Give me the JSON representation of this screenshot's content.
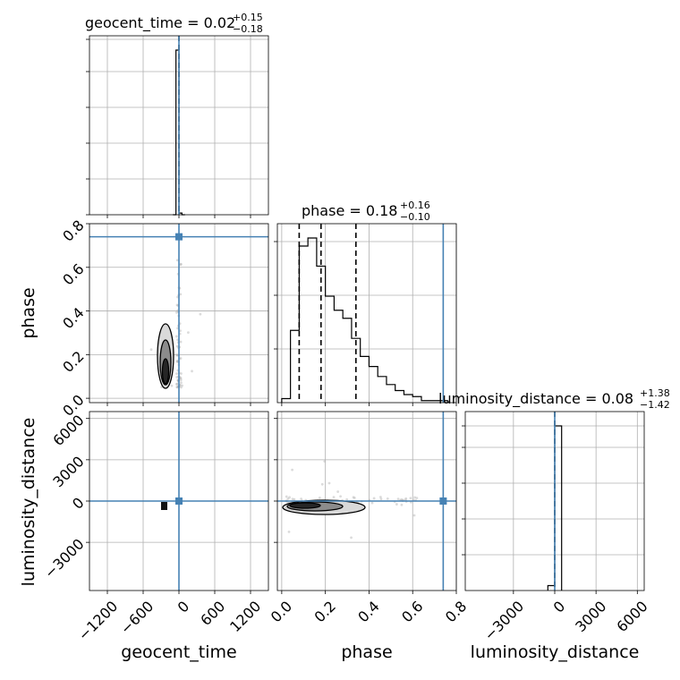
{
  "chart_data": {
    "type": "corner",
    "parameters": [
      "geocent_time",
      "phase",
      "luminosity_distance"
    ],
    "truths": {
      "geocent_time": 0,
      "phase": 0.74,
      "luminosity_distance": 0
    },
    "colors": {
      "truth": "#4682b4",
      "hist": "#000000",
      "grid": "#b0b0b0"
    },
    "titles": [
      {
        "param": "geocent_time",
        "text": "geocent_time = 0.02",
        "plus": "+0.15",
        "minus": "−0.18"
      },
      {
        "param": "phase",
        "text": "phase = 0.18",
        "plus": "+0.16",
        "minus": "−0.10"
      },
      {
        "param": "luminosity_distance",
        "text": "luminosity_distance = 0.08",
        "plus": "+1.38",
        "minus": "−1.42"
      }
    ],
    "ranges": {
      "geocent_time": [
        -1500,
        1500
      ],
      "phase": [
        -0.02,
        0.8
      ],
      "luminosity_distance": [
        -6500,
        6500
      ]
    },
    "ticks": {
      "geocent_time": [
        -1200,
        -600,
        0,
        600,
        1200
      ],
      "phase_x": [
        0.0,
        0.2,
        0.4,
        0.6,
        0.8
      ],
      "phase_y": [
        0.0,
        0.2,
        0.4,
        0.6,
        0.8
      ],
      "luminosity_distance": [
        -3000,
        0,
        3000,
        6000
      ]
    },
    "tick_labels": {
      "geocent_time": [
        "−1200",
        "−600",
        "0",
        "600",
        "1200"
      ],
      "phase_x": [
        "0.0",
        "0.2",
        "0.4",
        "0.6",
        "0.8"
      ],
      "phase_y": [
        "0.0",
        "0.2",
        "0.4",
        "0.6",
        "0.8"
      ],
      "luminosity_distance": [
        "−3000",
        "0",
        "3000",
        "6000"
      ]
    },
    "hist_geocent_time": {
      "edges": [
        -100,
        -50,
        0,
        50,
        100
      ],
      "counts": [
        0,
        1.0,
        0.01,
        0
      ]
    },
    "hist_phase": {
      "edges": [
        0.0,
        0.04,
        0.08,
        0.12,
        0.16,
        0.2,
        0.24,
        0.28,
        0.32,
        0.36,
        0.4,
        0.44,
        0.48,
        0.52,
        0.56,
        0.6,
        0.64,
        0.68,
        0.72,
        0.76
      ],
      "counts": [
        0.02,
        0.36,
        0.78,
        0.82,
        0.68,
        0.53,
        0.46,
        0.42,
        0.32,
        0.23,
        0.18,
        0.13,
        0.09,
        0.06,
        0.04,
        0.03,
        0.01,
        0.01,
        0.01
      ],
      "quantiles": [
        0.08,
        0.18,
        0.34
      ]
    },
    "hist_luminosity_distance": {
      "edges": [
        -500,
        0,
        500
      ],
      "counts": [
        0.03,
        1.0
      ]
    },
    "axis_labels": {
      "geocent_time": "geocent_time",
      "phase": "phase",
      "luminosity_distance": "luminosity_distance"
    }
  }
}
